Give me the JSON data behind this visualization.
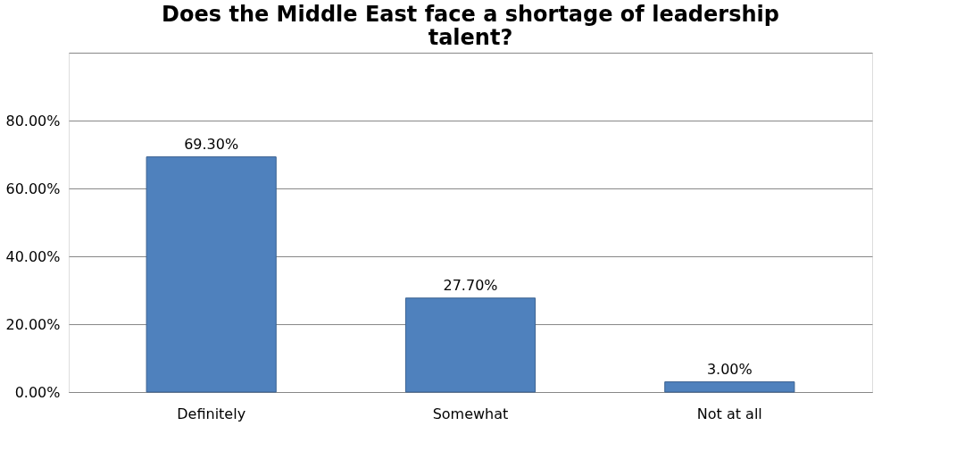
{
  "chart_data": {
    "type": "bar",
    "title": "Does the Middle East face a shortage of leadership talent?",
    "categories": [
      "Definitely",
      "Somewhat",
      "Not at all"
    ],
    "values": [
      69.3,
      27.7,
      3.0
    ],
    "value_labels": [
      "69.30%",
      "27.70%",
      "3.00%"
    ],
    "color": "#4f81bd",
    "ylim": [
      0,
      100
    ],
    "yticks": [
      {
        "value": 0,
        "label": "0.00%"
      },
      {
        "value": 20,
        "label": "20.00%"
      },
      {
        "value": 40,
        "label": "40.00%"
      },
      {
        "value": 60,
        "label": "60.00%"
      },
      {
        "value": 80,
        "label": "80.00%"
      },
      {
        "value": 100,
        "label": null
      }
    ],
    "grid": true
  }
}
